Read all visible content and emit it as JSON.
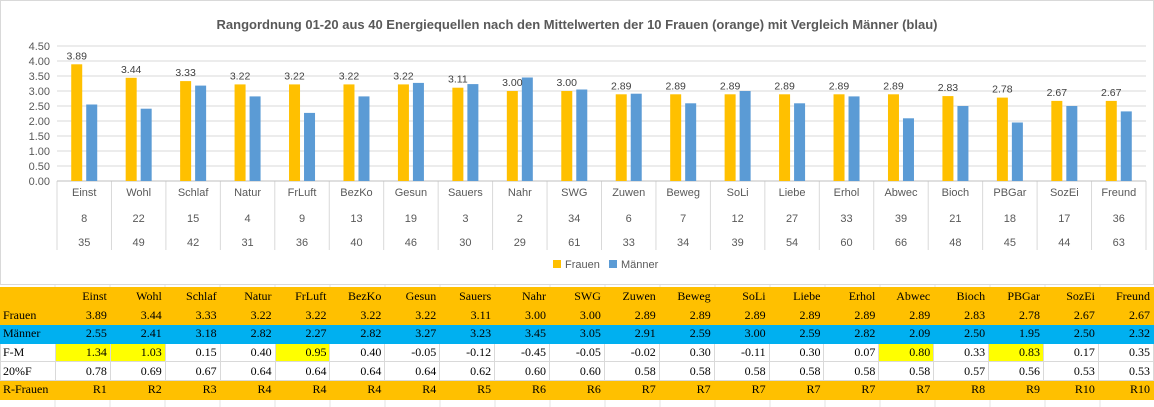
{
  "chart_data": {
    "type": "bar",
    "title": "Rangordnung 01-20 aus 40 Energiequellen nach den Mittelwerten der 10 Frauen (orange) mit Vergleich Männer (blau)",
    "categories": [
      "Einst",
      "Wohl",
      "Schlaf",
      "Natur",
      "FrLuft",
      "BezKo",
      "Gesun",
      "Sauers",
      "Nahr",
      "SWG",
      "Zuwen",
      "Beweg",
      "SoLi",
      "Liebe",
      "Erhol",
      "Abwec",
      "Bioch",
      "PBGar",
      "SozEi",
      "Freund"
    ],
    "category_row2": [
      "8",
      "22",
      "15",
      "4",
      "9",
      "13",
      "19",
      "3",
      "2",
      "34",
      "6",
      "7",
      "12",
      "27",
      "33",
      "39",
      "21",
      "18",
      "17",
      "36"
    ],
    "category_row3": [
      "35",
      "49",
      "42",
      "31",
      "36",
      "40",
      "46",
      "30",
      "29",
      "61",
      "33",
      "34",
      "39",
      "54",
      "60",
      "66",
      "48",
      "45",
      "44",
      "63"
    ],
    "series": [
      {
        "name": "Frauen",
        "color": "#ffc000",
        "values": [
          3.89,
          3.44,
          3.33,
          3.22,
          3.22,
          3.22,
          3.22,
          3.11,
          3.0,
          3.0,
          2.89,
          2.89,
          2.89,
          2.89,
          2.89,
          2.89,
          2.83,
          2.78,
          2.67,
          2.67
        ],
        "labels": [
          "3.89",
          "3.44",
          "3.33",
          "3.22",
          "3.22",
          "3.22",
          "3.22",
          "3.11",
          "3.00",
          "3.00",
          "2.89",
          "2.89",
          "2.89",
          "2.89",
          "2.89",
          "2.89",
          "2.83",
          "2.78",
          "2.67",
          "2.67"
        ]
      },
      {
        "name": "Männer",
        "color": "#5b9bd5",
        "values": [
          2.55,
          2.41,
          3.18,
          2.82,
          2.27,
          2.82,
          3.27,
          3.23,
          3.45,
          3.05,
          2.91,
          2.59,
          3.0,
          2.59,
          2.82,
          2.09,
          2.5,
          1.95,
          2.5,
          2.32
        ]
      }
    ],
    "ylim": [
      0,
      4.5
    ],
    "yticks": [
      "0.00",
      "0.50",
      "1.00",
      "1.50",
      "2.00",
      "2.50",
      "3.00",
      "3.50",
      "4.00",
      "4.50"
    ],
    "grid": true,
    "legend_position": "bottom"
  },
  "table": {
    "header_row": [
      "",
      "Einst",
      "Wohl",
      "Schlaf",
      "Natur",
      "FrLuft",
      "BezKo",
      "Gesun",
      "Sauers",
      "Nahr",
      "SWG",
      "Zuwen",
      "Beweg",
      "SoLi",
      "Liebe",
      "Erhol",
      "Abwec",
      "Bioch",
      "PBGar",
      "SozEi",
      "Freund"
    ],
    "rows": [
      {
        "label": "Frauen",
        "cells": [
          "3.89",
          "3.44",
          "3.33",
          "3.22",
          "3.22",
          "3.22",
          "3.22",
          "3.11",
          "3.00",
          "3.00",
          "2.89",
          "2.89",
          "2.89",
          "2.89",
          "2.89",
          "2.89",
          "2.83",
          "2.78",
          "2.67",
          "2.67"
        ]
      },
      {
        "label": "Männer",
        "cells": [
          "2.55",
          "2.41",
          "3.18",
          "2.82",
          "2.27",
          "2.82",
          "3.27",
          "3.23",
          "3.45",
          "3.05",
          "2.91",
          "2.59",
          "3.00",
          "2.59",
          "2.82",
          "2.09",
          "2.50",
          "1.95",
          "2.50",
          "2.32"
        ]
      },
      {
        "label": "F-M",
        "cells": [
          "1.34",
          "1.03",
          "0.15",
          "0.40",
          "0.95",
          "0.40",
          "-0.05",
          "-0.12",
          "-0.45",
          "-0.05",
          "-0.02",
          "0.30",
          "-0.11",
          "0.30",
          "0.07",
          "0.80",
          "0.33",
          "0.83",
          "0.17",
          "0.35"
        ],
        "highlight": [
          true,
          true,
          false,
          false,
          true,
          false,
          false,
          false,
          false,
          false,
          false,
          false,
          false,
          false,
          false,
          true,
          false,
          true,
          false,
          false
        ],
        "highlight_color": "#ffff00"
      },
      {
        "label": "20%F",
        "cells": [
          "0.78",
          "0.69",
          "0.67",
          "0.64",
          "0.64",
          "0.64",
          "0.64",
          "0.62",
          "0.60",
          "0.60",
          "0.58",
          "0.58",
          "0.58",
          "0.58",
          "0.58",
          "0.58",
          "0.57",
          "0.56",
          "0.53",
          "0.53"
        ]
      },
      {
        "label": "R-Frauen",
        "cells": [
          "R1",
          "R2",
          "R3",
          "R4",
          "R4",
          "R4",
          "R4",
          "R5",
          "R6",
          "R6",
          "R7",
          "R7",
          "R7",
          "R7",
          "R7",
          "R7",
          "R8",
          "R9",
          "R10",
          "R10"
        ]
      }
    ]
  },
  "colors": {
    "frauen": "#ffc000",
    "maenner_bar": "#5b9bd5",
    "maenner_row": "#00b0f0",
    "highlight": "#ffff00"
  }
}
